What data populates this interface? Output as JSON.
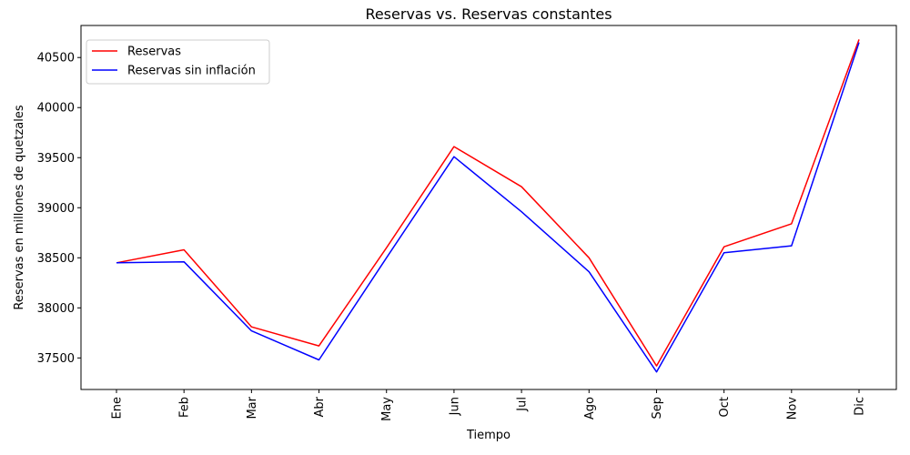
{
  "chart_data": {
    "type": "line",
    "title": "Reservas vs. Reservas constantes",
    "xlabel": "Tiempo",
    "ylabel": "Reservas en millones de quetzales",
    "categories": [
      "Ene",
      "Feb",
      "Mar",
      "Abr",
      "May",
      "Jun",
      "Jul",
      "Ago",
      "Sep",
      "Oct",
      "Nov",
      "Dic"
    ],
    "ylim": [
      37185,
      40820
    ],
    "yticks": [
      37500,
      38000,
      38500,
      39000,
      39500,
      40000,
      40500
    ],
    "grid": false,
    "legend_position": "top-left",
    "series": [
      {
        "name": "Reservas",
        "color": "#ff0000",
        "values": [
          38450,
          38580,
          37810,
          37620,
          38600,
          39610,
          39210,
          38500,
          37420,
          38610,
          38840,
          40680
        ]
      },
      {
        "name": "Reservas sin inflación",
        "color": "#0000ff",
        "values": [
          38450,
          38460,
          37770,
          37480,
          38500,
          39510,
          38960,
          38360,
          37360,
          38550,
          38620,
          40650
        ]
      }
    ]
  }
}
